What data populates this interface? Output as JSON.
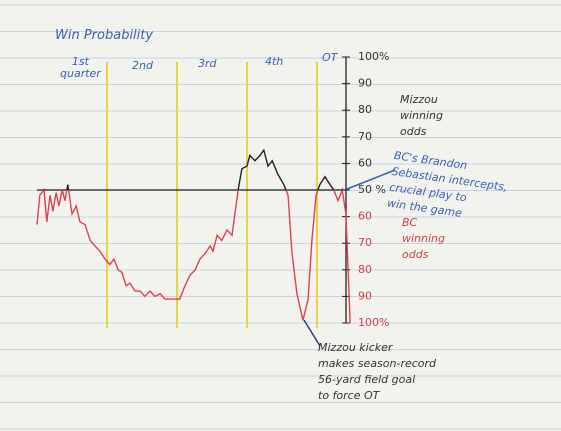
{
  "chart_data": {
    "type": "line",
    "title": "Win Probability",
    "categories": [
      "1st\nquarter",
      "2nd",
      "3rd",
      "4th",
      "OT"
    ],
    "quarter_boundaries": [
      15,
      30,
      45,
      60
    ],
    "boundary_color": "#e8d24a",
    "xlim": [
      0,
      67.5
    ],
    "ylim": [
      0,
      100
    ],
    "yticks": [
      {
        "value": 100,
        "label": "100%"
      },
      90,
      80,
      70,
      60,
      {
        "value": 50,
        "label": "50 %"
      },
      {
        "value": 40,
        "label": "60"
      },
      {
        "value": 30,
        "label": "70"
      },
      {
        "value": 20,
        "label": "80"
      },
      {
        "value": 10,
        "label": "90"
      },
      {
        "value": 0,
        "label": "100%"
      }
    ],
    "series": [
      {
        "color_above": "#222222",
        "color_below": "#e0404f",
        "x": [
          0,
          0.6,
          1.5,
          2.1,
          2.8,
          3.4,
          4.1,
          4.7,
          5.4,
          6.0,
          6.6,
          7.5,
          8.4,
          9.2,
          10.3,
          11.4,
          12.4,
          13.5,
          14.6,
          15.6,
          16.5,
          17.4,
          18.2,
          19.1,
          19.9,
          21.0,
          22.1,
          23.1,
          24.2,
          25.3,
          26.4,
          27.4,
          28.5,
          29.8,
          30.6,
          31.7,
          32.8,
          33.9,
          34.9,
          36.0,
          37.1,
          37.7,
          38.6,
          39.6,
          40.7,
          41.8,
          42.4,
          43.1,
          43.9,
          45.0,
          45.6,
          46.7,
          47.8,
          48.6,
          49.5,
          50.4,
          51.6,
          52.9,
          53.8,
          54.6,
          55.7,
          57.0,
          58.1,
          58.9,
          59.8,
          60.6,
          61.7,
          62.8,
          63.6,
          64.5,
          65.4,
          66.2,
          67.1
        ],
        "values": [
          37,
          48,
          50,
          38,
          48,
          42,
          49,
          44,
          50,
          46,
          52,
          41,
          44,
          38,
          37,
          31,
          29,
          27,
          24,
          22,
          24,
          20,
          19,
          14,
          15,
          12,
          12,
          10,
          12,
          10,
          11,
          9,
          9,
          9,
          9,
          14,
          18,
          20,
          24,
          26,
          29,
          27,
          33,
          31,
          35,
          33,
          41,
          50,
          58,
          59,
          63,
          61,
          63,
          65,
          59,
          61,
          56,
          52,
          48,
          27,
          11,
          1,
          9,
          31,
          48,
          52,
          55,
          52,
          50,
          46,
          50,
          41,
          0
        ]
      }
    ],
    "annotations": [
      {
        "text": "Mizzou\nwinning\nodds",
        "color": "#333333"
      },
      {
        "text": "BC's Brandon\nSebastian intercepts,\ncrucial play to\nwin the game",
        "color": "#3a5fb5"
      },
      {
        "text": "BC\nwinning\nodds",
        "color": "#d0404a"
      },
      {
        "text": "Mizzou kicker\nmakes season-record\n56-yard field goal\nto force OT",
        "color": "#333333"
      }
    ],
    "title_color": "#3a5fb5",
    "label_color": "#3a5fb5"
  }
}
